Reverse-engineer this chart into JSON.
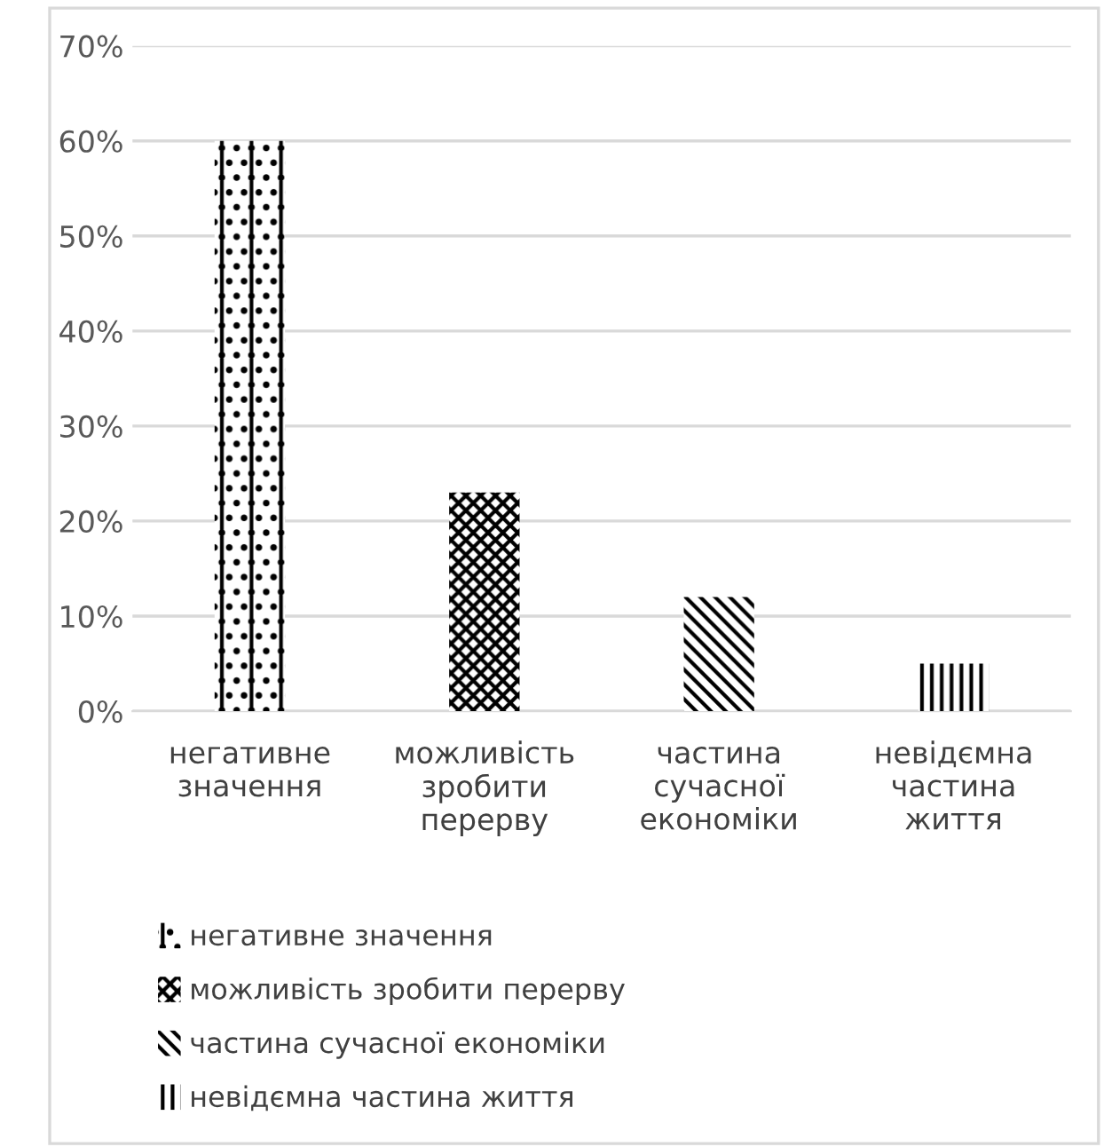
{
  "chart_data": {
    "type": "bar",
    "categories": [
      "негативне значення",
      "можливість зробити перерву",
      "частина сучасної економіки",
      "невідємна частина життя"
    ],
    "series": [
      {
        "name": "негативне значення",
        "color": "#000000",
        "values": [
          60,
          null,
          null,
          null
        ]
      },
      {
        "name": "можливість зробити перерву",
        "color": "#000000",
        "values": [
          null,
          23,
          null,
          null
        ]
      },
      {
        "name": "частина сучасної економіки",
        "color": "#000000",
        "values": [
          null,
          null,
          12,
          null
        ]
      },
      {
        "name": "невідємна частина життя",
        "color": "#000000",
        "values": [
          null,
          null,
          null,
          5
        ]
      }
    ],
    "ylim": [
      0,
      70
    ],
    "yticks": [
      {
        "value": 0,
        "label": "0%"
      },
      {
        "value": 10,
        "label": "10%"
      },
      {
        "value": 20,
        "label": "20%"
      },
      {
        "value": 30,
        "label": "30%"
      },
      {
        "value": 40,
        "label": "40%"
      },
      {
        "value": 50,
        "label": "50%"
      },
      {
        "value": 60,
        "label": "60%"
      },
      {
        "value": 70,
        "label": "70%"
      }
    ],
    "grid": "y",
    "legend": "bottom"
  }
}
